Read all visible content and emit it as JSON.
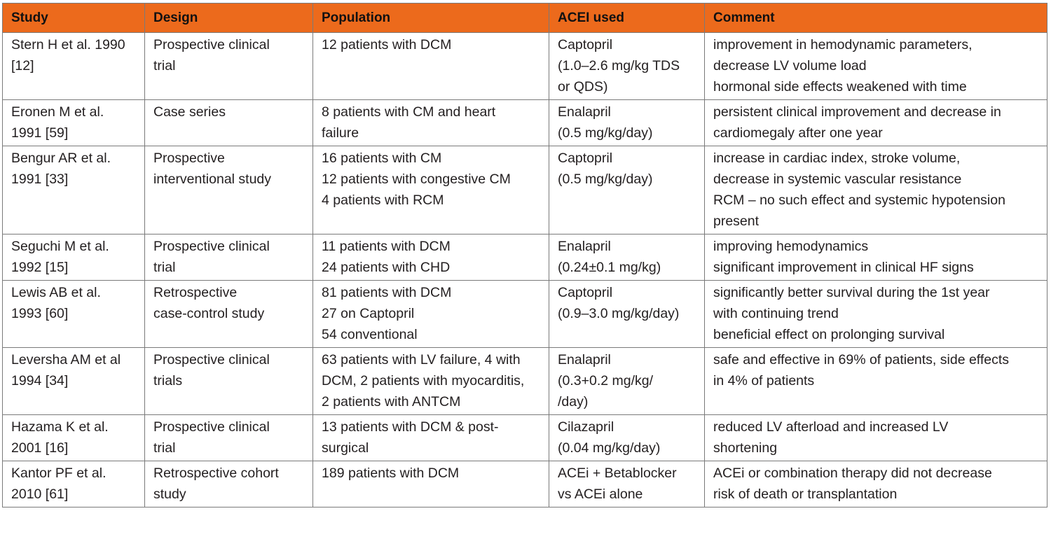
{
  "table": {
    "headers": [
      "Study",
      "Design",
      "Population",
      "ACEI used",
      "Comment"
    ],
    "rows": [
      {
        "study": [
          "Stern H et al. 1990",
          "[12]"
        ],
        "design": [
          "Prospective clinical",
          "trial"
        ],
        "population": [
          "12 patients with DCM"
        ],
        "acei": [
          "Captopril",
          "(1.0–2.6 mg/kg TDS",
          "or QDS)"
        ],
        "comment": [
          "improvement in hemodynamic parameters,",
          "decrease LV volume load",
          "hormonal side effects weakened with time"
        ]
      },
      {
        "study": [
          "Eronen M et al.",
          "1991 [59]"
        ],
        "design": [
          "Case series"
        ],
        "population": [
          "8 patients with CM and heart",
          "failure"
        ],
        "acei": [
          "Enalapril",
          "(0.5 mg/kg/day)"
        ],
        "comment": [
          "persistent clinical improvement and decrease in",
          "cardiomegaly after one year"
        ]
      },
      {
        "study": [
          "Bengur AR et al.",
          "1991 [33]"
        ],
        "design": [
          "Prospective",
          "interventional study"
        ],
        "population": [
          "16 patients with CM",
          "12 patients with congestive CM",
          "4 patients with RCM"
        ],
        "acei": [
          "Captopril",
          "(0.5 mg/kg/day)"
        ],
        "comment": [
          "increase in cardiac index, stroke volume,",
          "decrease in systemic vascular resistance",
          "RCM –  no such effect and systemic hypotension",
          "present"
        ]
      },
      {
        "study": [
          "Seguchi M et al.",
          "1992 [15]"
        ],
        "design": [
          "Prospective clinical",
          "trial"
        ],
        "population": [
          "11 patients with DCM",
          "24 patients with CHD"
        ],
        "acei": [
          "Enalapril",
          "(0.24±0.1 mg/kg)"
        ],
        "comment": [
          "improving hemodynamics",
          "significant improvement in clinical HF signs"
        ]
      },
      {
        "study": [
          "Lewis AB et al.",
          "1993 [60]"
        ],
        "design": [
          "Retrospective",
          "case-control study"
        ],
        "population": [
          "81 patients with DCM",
          "27 on Captopril",
          "54 conventional"
        ],
        "acei": [
          "Captopril",
          "(0.9–3.0 mg/kg/day)"
        ],
        "comment": [
          "significantly better survival during the 1st year",
          "with continuing trend",
          "beneficial effect on prolonging survival"
        ]
      },
      {
        "study": [
          "Leversha AM et al",
          "1994 [34]"
        ],
        "design": [
          "Prospective clinical",
          "trials"
        ],
        "population": [
          "63 patients with LV failure, 4 with",
          "DCM, 2 patients with myocarditis,",
          "2 patients with ANTCM"
        ],
        "acei": [
          "Enalapril",
          "(0.3+0.2 mg/kg/",
          "/day)"
        ],
        "comment": [
          "safe and effective in 69% of patients, side effects",
          "in 4% of patients"
        ]
      },
      {
        "study": [
          "Hazama K et al.",
          "2001 [16]"
        ],
        "design": [
          "Prospective clinical",
          "trial"
        ],
        "population": [
          "13 patients with DCM & post-",
          "surgical"
        ],
        "acei": [
          "Cilazapril",
          "(0.04 mg/kg/day)"
        ],
        "comment": [
          "reduced LV afterload and increased LV",
          "shortening"
        ]
      },
      {
        "study": [
          "Kantor PF et al.",
          "2010 [61]"
        ],
        "design": [
          "Retrospective cohort",
          "study"
        ],
        "population": [
          "189 patients with DCM"
        ],
        "acei": [
          "ACEi + Betablocker",
          "vs ACEi alone"
        ],
        "comment": [
          "ACEi or combination therapy did not decrease",
          "risk of death or transplantation"
        ]
      }
    ]
  },
  "colors": {
    "header_bg": "#ec6a1c",
    "border": "#7a7a7a",
    "text": "#231f20"
  }
}
